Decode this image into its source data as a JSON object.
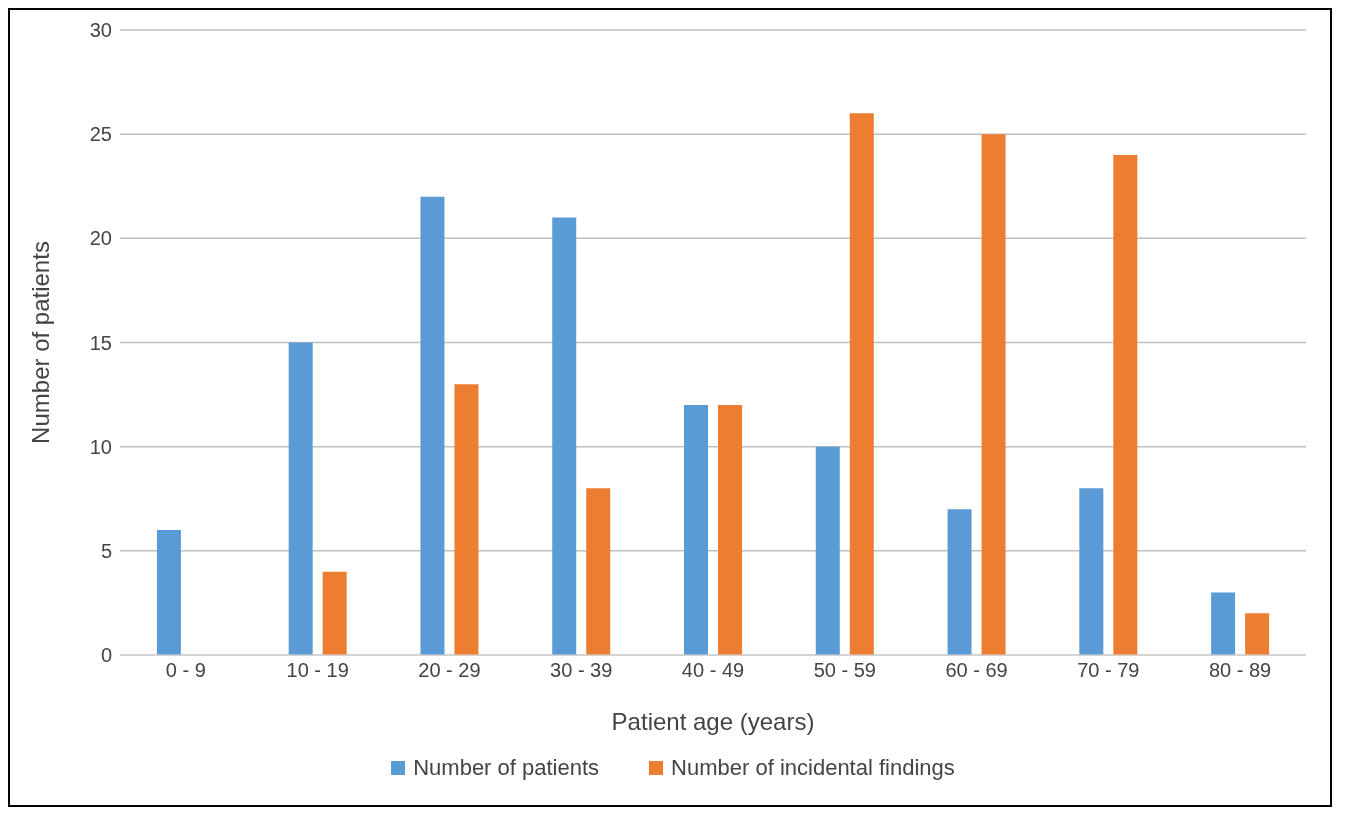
{
  "chart_data": {
    "type": "bar",
    "xlabel": "Patient age (years)",
    "ylabel": "Number of patients",
    "categories": [
      "0 - 9",
      "10 - 19",
      "20 - 29",
      "30 - 39",
      "40 - 49",
      "50 - 59",
      "60 - 69",
      "70 - 79",
      "80 - 89"
    ],
    "series": [
      {
        "name": "Number of patients",
        "color": "#5b9bd5",
        "values": [
          6,
          15,
          22,
          21,
          12,
          10,
          7,
          8,
          3
        ]
      },
      {
        "name": "Number of incidental findings",
        "color": "#ed7d31",
        "values": [
          0,
          4,
          13,
          8,
          12,
          26,
          25,
          24,
          2
        ]
      }
    ],
    "ylim": [
      0,
      30
    ],
    "yticks": [
      0,
      5,
      10,
      15,
      20,
      25,
      30
    ],
    "grid": "y",
    "legend": "bottom"
  }
}
